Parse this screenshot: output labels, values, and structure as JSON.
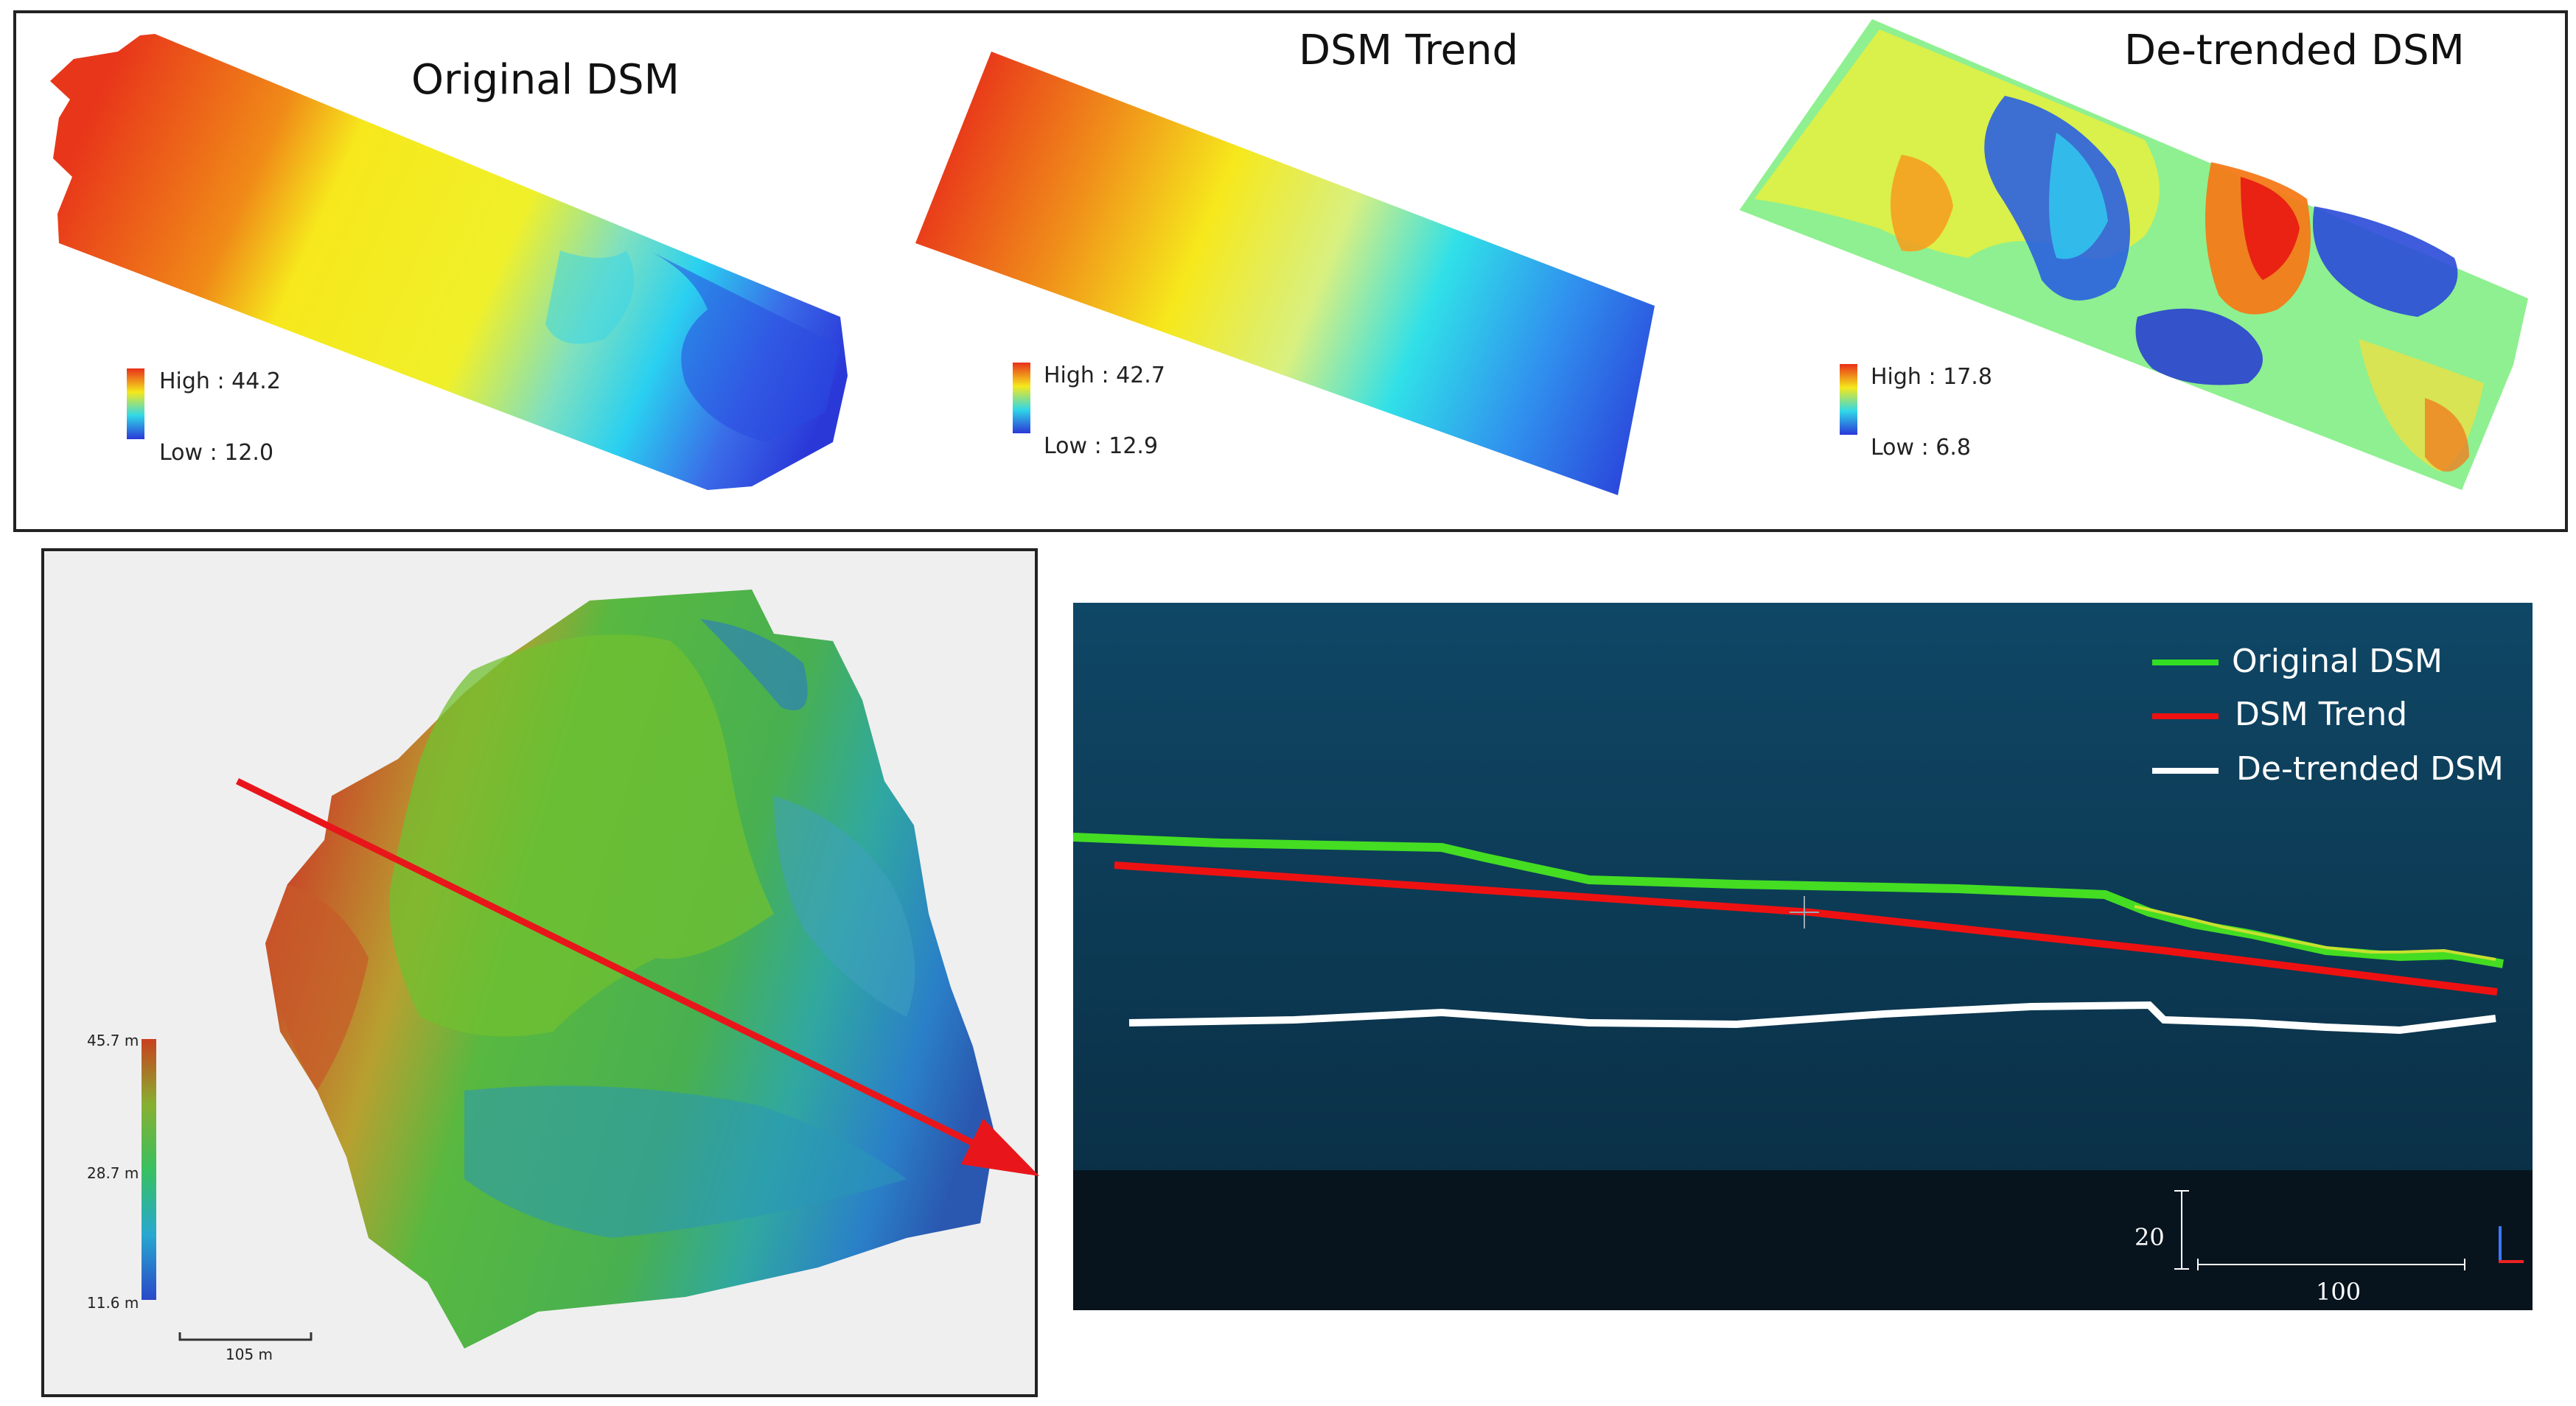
{
  "top_panels": [
    {
      "title": "Original DSM",
      "high": "High : 44.2",
      "low": "Low : 12.0"
    },
    {
      "title": "DSM Trend",
      "high": "High : 42.7",
      "low": "Low : 12.9"
    },
    {
      "title": "De-trended DSM",
      "high": "High : 17.8",
      "low": "Low : 6.8"
    }
  ],
  "map_panel": {
    "legend_max": "45.7 m",
    "legend_mid": "28.7 m",
    "legend_min": "11.6 m",
    "scale_label": "105 m"
  },
  "profile_panel": {
    "legend": [
      {
        "label": "Original DSM",
        "color": "#33dd22"
      },
      {
        "label": "DSM Trend",
        "color": "#ee1111"
      },
      {
        "label": "De-trended DSM",
        "color": "#ffffff"
      }
    ],
    "vertical_scale": "20",
    "horizontal_scale": "100"
  },
  "colors": {
    "arrow": "#e8161b",
    "profile_bg_top": "#0f4766",
    "profile_bg_bottom": "#071a26"
  }
}
